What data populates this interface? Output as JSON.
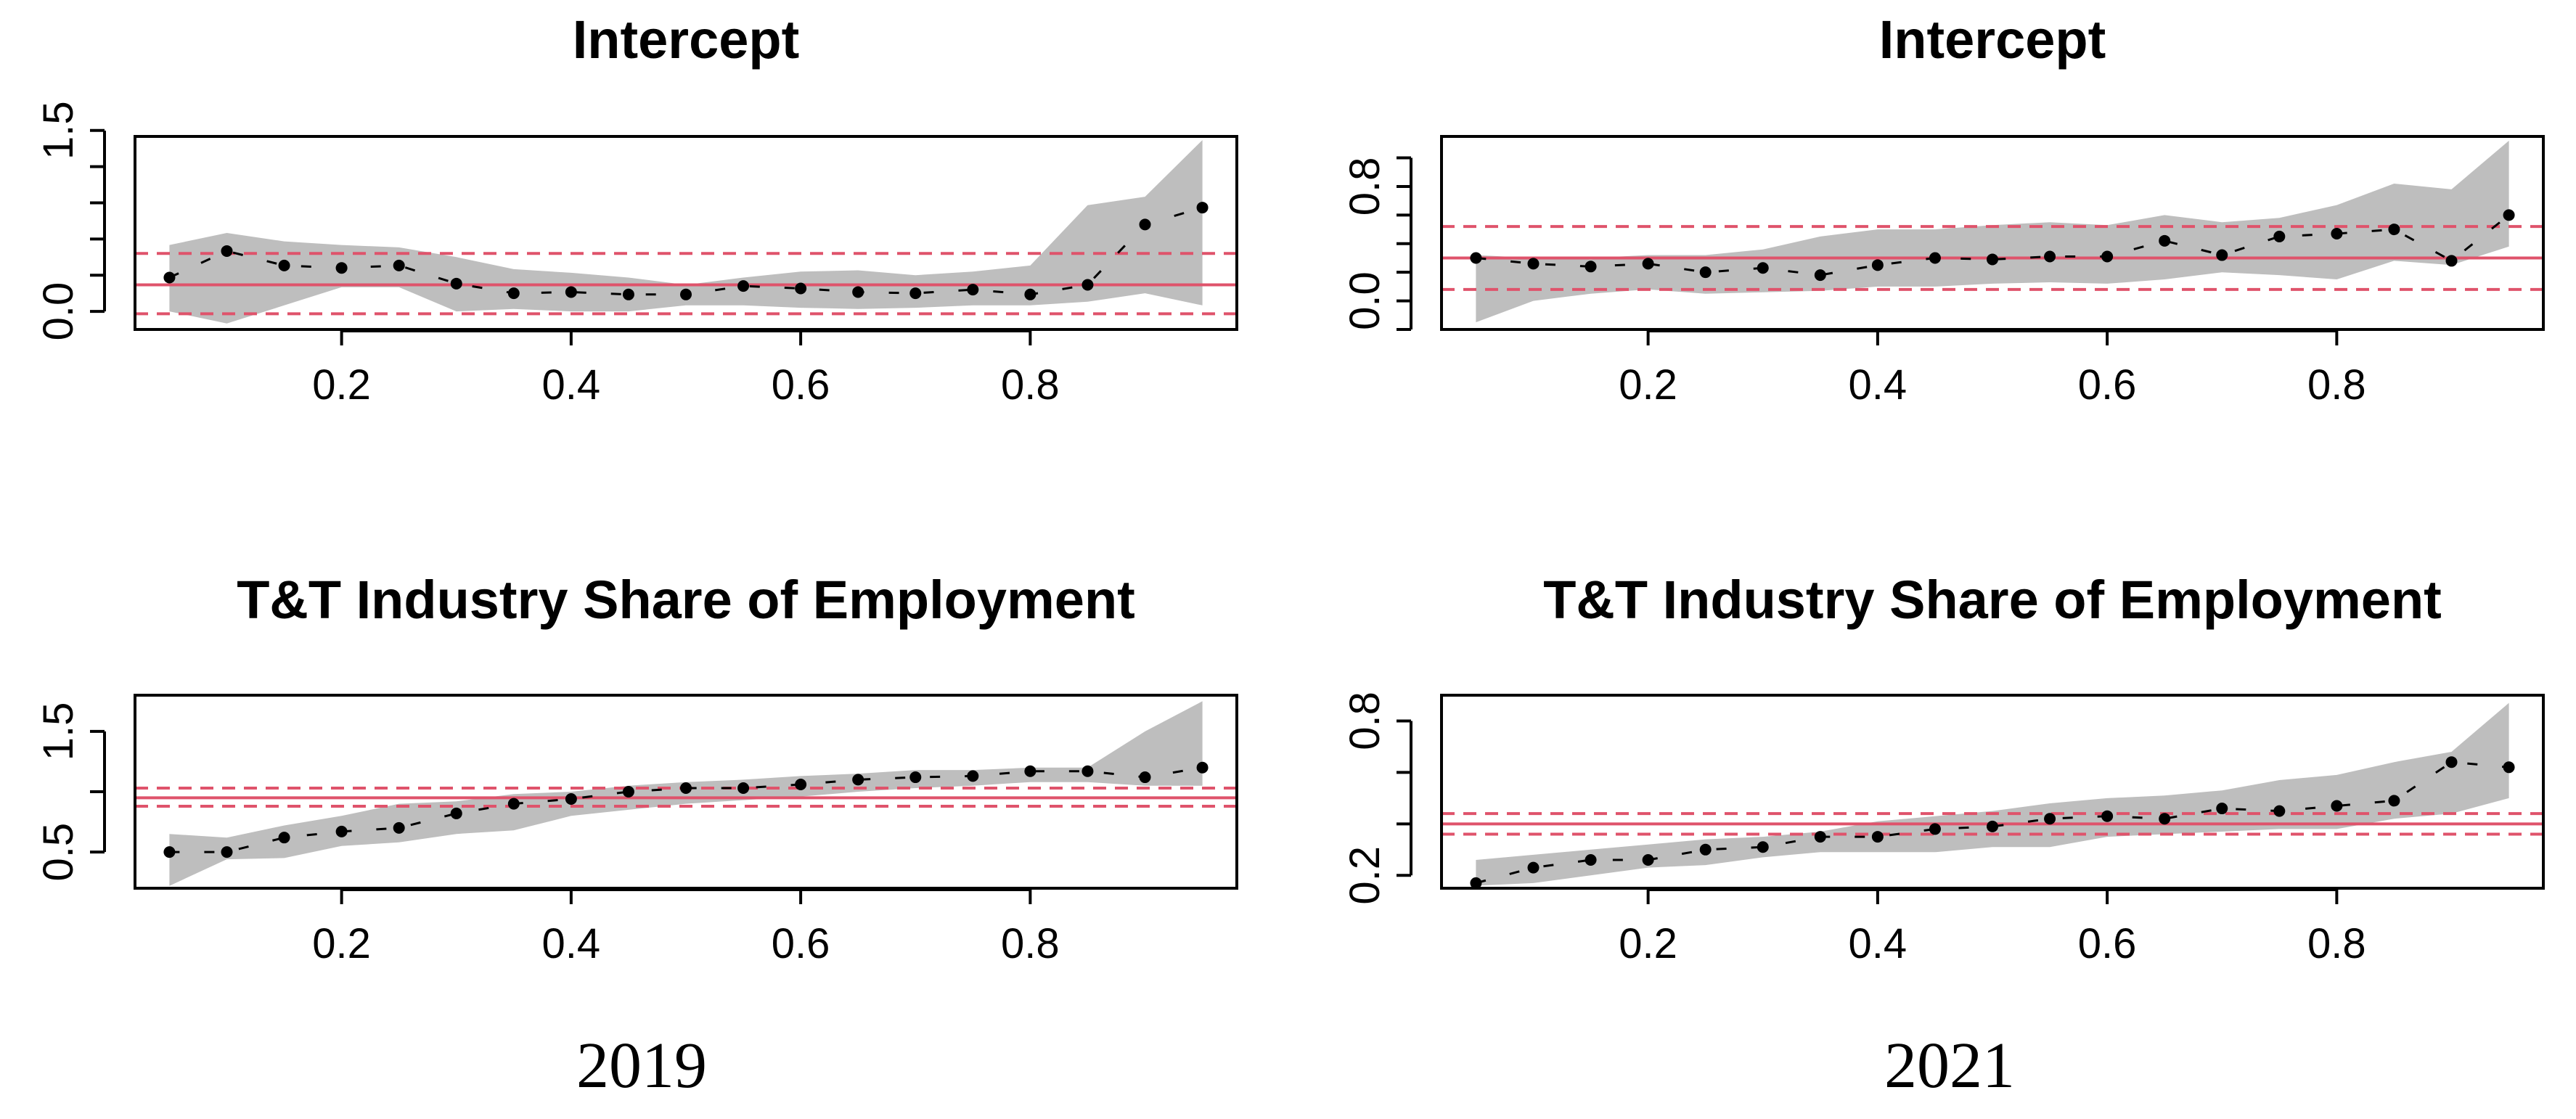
{
  "figure": {
    "captions": [
      "2019",
      "2021"
    ]
  },
  "chart_data": [
    {
      "type": "line",
      "title": "Intercept",
      "year": "2019",
      "xlabel": "",
      "ylabel": "",
      "xlim": [
        0.02,
        0.98
      ],
      "ylim": [
        -0.15,
        1.45
      ],
      "xticks": [
        0.2,
        0.4,
        0.6,
        0.8
      ],
      "xtick_labels": [
        "0.2",
        "0.4",
        "0.6",
        "0.8"
      ],
      "yticks": [
        0.0,
        0.3,
        0.6,
        0.9,
        1.2,
        1.5
      ],
      "ytick_labels": [
        "0.0",
        "",
        "",
        "",
        "",
        "1.5"
      ],
      "x": [
        0.05,
        0.1,
        0.15,
        0.2,
        0.25,
        0.3,
        0.35,
        0.4,
        0.45,
        0.5,
        0.55,
        0.6,
        0.65,
        0.7,
        0.75,
        0.8,
        0.85,
        0.9,
        0.95
      ],
      "series": [
        {
          "name": "quantile estimate",
          "values": [
            0.28,
            0.5,
            0.38,
            0.36,
            0.38,
            0.23,
            0.15,
            0.16,
            0.14,
            0.14,
            0.21,
            0.19,
            0.16,
            0.15,
            0.18,
            0.14,
            0.22,
            0.72,
            0.86
          ]
        },
        {
          "name": "ci_lower",
          "values": [
            0.0,
            -0.1,
            0.05,
            0.2,
            0.2,
            0.0,
            0.02,
            0.0,
            0.0,
            0.05,
            0.05,
            0.03,
            0.02,
            0.03,
            0.05,
            0.05,
            0.08,
            0.15,
            0.05
          ]
        },
        {
          "name": "ci_upper",
          "values": [
            0.55,
            0.65,
            0.58,
            0.55,
            0.53,
            0.45,
            0.35,
            0.32,
            0.28,
            0.22,
            0.28,
            0.33,
            0.34,
            0.3,
            0.33,
            0.38,
            0.88,
            0.95,
            1.42
          ]
        }
      ],
      "ols": {
        "estimate": 0.22,
        "ci_lower": -0.02,
        "ci_upper": 0.48
      }
    },
    {
      "type": "line",
      "title": "Intercept",
      "year": "2021",
      "xlabel": "",
      "ylabel": "",
      "xlim": [
        0.02,
        0.98
      ],
      "ylim": [
        -0.2,
        1.15
      ],
      "xticks": [
        0.2,
        0.4,
        0.6,
        0.8
      ],
      "xtick_labels": [
        "0.2",
        "0.4",
        "0.6",
        "0.8"
      ],
      "yticks": [
        -0.2,
        0.0,
        0.2,
        0.4,
        0.6,
        0.8,
        1.0
      ],
      "ytick_labels": [
        "",
        "0.0",
        "",
        "",
        "",
        "0.8",
        ""
      ],
      "x": [
        0.05,
        0.1,
        0.15,
        0.2,
        0.25,
        0.3,
        0.35,
        0.4,
        0.45,
        0.5,
        0.55,
        0.6,
        0.65,
        0.7,
        0.75,
        0.8,
        0.85,
        0.9,
        0.95
      ],
      "series": [
        {
          "name": "quantile estimate",
          "values": [
            0.3,
            0.26,
            0.24,
            0.26,
            0.2,
            0.23,
            0.18,
            0.25,
            0.3,
            0.29,
            0.31,
            0.31,
            0.42,
            0.32,
            0.45,
            0.47,
            0.5,
            0.28,
            0.6
          ]
        },
        {
          "name": "ci_lower",
          "values": [
            -0.15,
            0.0,
            0.05,
            0.08,
            0.05,
            0.06,
            0.07,
            0.1,
            0.1,
            0.12,
            0.13,
            0.12,
            0.15,
            0.2,
            0.18,
            0.15,
            0.28,
            0.25,
            0.38
          ]
        },
        {
          "name": "ci_upper",
          "values": [
            0.32,
            0.3,
            0.3,
            0.32,
            0.32,
            0.36,
            0.45,
            0.5,
            0.5,
            0.53,
            0.55,
            0.53,
            0.6,
            0.55,
            0.58,
            0.67,
            0.82,
            0.78,
            1.12
          ]
        }
      ],
      "ols": {
        "estimate": 0.3,
        "ci_lower": 0.08,
        "ci_upper": 0.52
      }
    },
    {
      "type": "line",
      "title": "T&T Industry Share of Employment",
      "year": "2019",
      "xlabel": "",
      "ylabel": "",
      "xlim": [
        0.02,
        0.98
      ],
      "ylim": [
        0.2,
        1.8
      ],
      "xticks": [
        0.2,
        0.4,
        0.6,
        0.8
      ],
      "xtick_labels": [
        "0.2",
        "0.4",
        "0.6",
        "0.8"
      ],
      "yticks": [
        0.5,
        1.0,
        1.5
      ],
      "ytick_labels": [
        "0.5",
        "",
        "1.5"
      ],
      "x": [
        0.05,
        0.1,
        0.15,
        0.2,
        0.25,
        0.3,
        0.35,
        0.4,
        0.45,
        0.5,
        0.55,
        0.6,
        0.65,
        0.7,
        0.75,
        0.8,
        0.85,
        0.9,
        0.95
      ],
      "series": [
        {
          "name": "quantile estimate",
          "values": [
            0.5,
            0.5,
            0.62,
            0.67,
            0.7,
            0.82,
            0.9,
            0.94,
            1.0,
            1.03,
            1.03,
            1.06,
            1.1,
            1.12,
            1.13,
            1.17,
            1.17,
            1.12,
            1.2
          ]
        },
        {
          "name": "ci_lower",
          "values": [
            0.22,
            0.44,
            0.45,
            0.55,
            0.58,
            0.65,
            0.68,
            0.8,
            0.85,
            0.9,
            0.93,
            0.96,
            1.0,
            1.03,
            1.05,
            1.08,
            1.08,
            1.05,
            1.05
          ]
        },
        {
          "name": "ci_upper",
          "values": [
            0.65,
            0.62,
            0.72,
            0.8,
            0.9,
            0.92,
            0.98,
            1.0,
            1.05,
            1.08,
            1.1,
            1.13,
            1.15,
            1.18,
            1.18,
            1.2,
            1.2,
            1.5,
            1.75
          ]
        }
      ],
      "ols": {
        "estimate": 0.95,
        "ci_lower": 0.88,
        "ci_upper": 1.03
      }
    },
    {
      "type": "line",
      "title": "T&T Industry Share of Employment",
      "year": "2021",
      "xlabel": "",
      "ylabel": "",
      "xlim": [
        0.02,
        0.98
      ],
      "ylim": [
        0.15,
        0.9
      ],
      "xticks": [
        0.2,
        0.4,
        0.6,
        0.8
      ],
      "xtick_labels": [
        "0.2",
        "0.4",
        "0.6",
        "0.8"
      ],
      "yticks": [
        0.2,
        0.4,
        0.6,
        0.8
      ],
      "ytick_labels": [
        "0.2",
        "",
        "",
        "0.8"
      ],
      "x": [
        0.05,
        0.1,
        0.15,
        0.2,
        0.25,
        0.3,
        0.35,
        0.4,
        0.45,
        0.5,
        0.55,
        0.6,
        0.65,
        0.7,
        0.75,
        0.8,
        0.85,
        0.9,
        0.95
      ],
      "series": [
        {
          "name": "quantile estimate",
          "values": [
            0.17,
            0.23,
            0.26,
            0.26,
            0.3,
            0.31,
            0.35,
            0.35,
            0.38,
            0.39,
            0.42,
            0.43,
            0.42,
            0.46,
            0.45,
            0.47,
            0.49,
            0.64,
            0.62
          ]
        },
        {
          "name": "ci_lower",
          "values": [
            0.16,
            0.17,
            0.2,
            0.23,
            0.24,
            0.27,
            0.29,
            0.29,
            0.29,
            0.31,
            0.31,
            0.35,
            0.36,
            0.37,
            0.38,
            0.38,
            0.42,
            0.44,
            0.5
          ]
        },
        {
          "name": "ci_upper",
          "values": [
            0.26,
            0.28,
            0.3,
            0.32,
            0.34,
            0.35,
            0.37,
            0.41,
            0.43,
            0.45,
            0.48,
            0.5,
            0.51,
            0.53,
            0.57,
            0.59,
            0.64,
            0.68,
            0.87
          ]
        }
      ],
      "ols": {
        "estimate": 0.4,
        "ci_lower": 0.36,
        "ci_upper": 0.44
      }
    }
  ]
}
